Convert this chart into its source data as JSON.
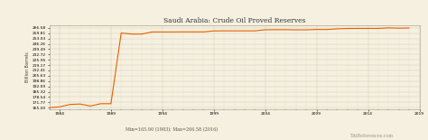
{
  "title": "Saudi Arabia: Crude Oil Proved Reserves",
  "ylabel": "Billion Barrels",
  "xlabel_note": "Min=165.00 (1983); Max=266.58 (2016)",
  "watermark": "TitiReferences.com",
  "background_color": "#f5f0e0",
  "plot_bg_color": "#f5f0e0",
  "line_color": "#e86000",
  "line_width": 0.8,
  "title_fontsize": 5.5,
  "tick_fontsize": 3.2,
  "ylabel_fontsize": 3.5,
  "note_fontsize": 3.5,
  "watermark_fontsize": 3.5,
  "yticks": [
    165.0,
    171.77,
    178.54,
    185.32,
    192.09,
    198.86,
    205.63,
    212.41,
    219.17,
    225.95,
    232.72,
    239.49,
    246.26,
    253.03,
    259.81,
    266.58
  ],
  "xticks": [
    1984,
    1989,
    1994,
    1999,
    2004,
    2009,
    2014,
    2019
  ],
  "xlim": [
    1983,
    2019
  ],
  "ylim": [
    163.0,
    270.0
  ],
  "data": {
    "years": [
      1983,
      1984,
      1985,
      1986,
      1987,
      1988,
      1989,
      1990,
      1991,
      1992,
      1993,
      1994,
      1995,
      1996,
      1997,
      1998,
      1999,
      2000,
      2001,
      2002,
      2003,
      2004,
      2005,
      2006,
      2007,
      2008,
      2009,
      2010,
      2011,
      2012,
      2013,
      2014,
      2015,
      2016,
      2017,
      2018
    ],
    "values": [
      165.0,
      166.0,
      169.0,
      169.6,
      167.0,
      170.0,
      170.0,
      260.1,
      258.7,
      258.7,
      261.4,
      261.4,
      261.4,
      261.5,
      261.5,
      261.5,
      262.7,
      262.8,
      262.8,
      262.8,
      262.8,
      264.2,
      264.3,
      264.3,
      264.1,
      264.1,
      264.6,
      264.5,
      265.4,
      265.8,
      265.9,
      265.9,
      265.9,
      266.58,
      266.2,
      266.4
    ]
  }
}
